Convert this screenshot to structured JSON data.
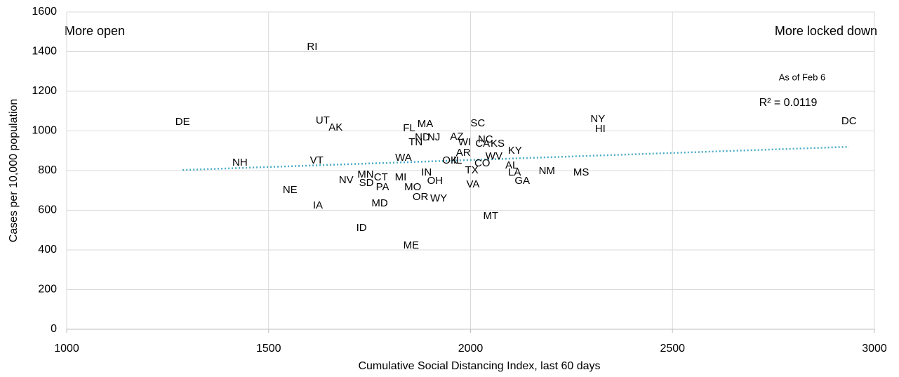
{
  "chart_data": {
    "type": "scatter",
    "x_label": "Cumulative Social Distancing Index, last 60 days",
    "y_label": "Cases per 10,000 population",
    "annotations": {
      "left": "More open",
      "right": "More locked down",
      "date": "As of Feb 6",
      "r2": "R² = 0.0119"
    },
    "labels": [
      "DE",
      "RI",
      "UT",
      "AK",
      "NH",
      "VT",
      "NE",
      "IA",
      "NV",
      "MN",
      "SD",
      "CT",
      "PA",
      "MD",
      "ID",
      "MI",
      "MO",
      "OR",
      "WY",
      "IN",
      "OH",
      "ME",
      "WA",
      "FL",
      "MA",
      "TN",
      "ND",
      "NJ",
      "AZ",
      "WI",
      "OK",
      "IL",
      "AR",
      "TX",
      "VA",
      "CO",
      "SC",
      "NC",
      "CA",
      "KS",
      "WV",
      "KY",
      "AL",
      "LA",
      "GA",
      "MT",
      "NM",
      "MS",
      "NY",
      "HI",
      "DC"
    ],
    "x": [
      1287,
      1608,
      1634,
      1666,
      1429,
      1619,
      1553,
      1622,
      1692,
      1740,
      1742,
      1778,
      1782,
      1775,
      1730,
      1827,
      1857,
      1876,
      1921,
      1891,
      1912,
      1853,
      1834,
      1848,
      1888,
      1864,
      1881,
      1909,
      1966,
      1985,
      1949,
      1968,
      1982,
      2003,
      2006,
      2029,
      2018,
      2037,
      2030,
      2067,
      2058,
      2110,
      2102,
      2109,
      2128,
      2050,
      2189,
      2274,
      2315,
      2321,
      2937
    ],
    "y": [
      1044,
      1423,
      1051,
      1016,
      839,
      850,
      701,
      623,
      750,
      779,
      736,
      765,
      715,
      634,
      510,
      765,
      715,
      665,
      658,
      789,
      747,
      421,
      864,
      1012,
      1034,
      942,
      966,
      966,
      970,
      942,
      850,
      850,
      888,
      800,
      729,
      835,
      1037,
      956,
      935,
      935,
      871,
      899,
      825,
      789,
      747,
      570,
      796,
      789,
      1058,
      1009,
      1048
    ],
    "trendline": {
      "color": "#4bacc6",
      "x": [
        1287,
        2937
      ],
      "y": [
        803,
        920
      ]
    },
    "xlim": [
      1000,
      3000
    ],
    "ylim": [
      0,
      1600
    ],
    "xticks": [
      1000,
      1500,
      2000,
      2500,
      3000
    ],
    "yticks": [
      0,
      200,
      400,
      600,
      800,
      1000,
      1200,
      1400,
      1600
    ],
    "grid": true
  }
}
